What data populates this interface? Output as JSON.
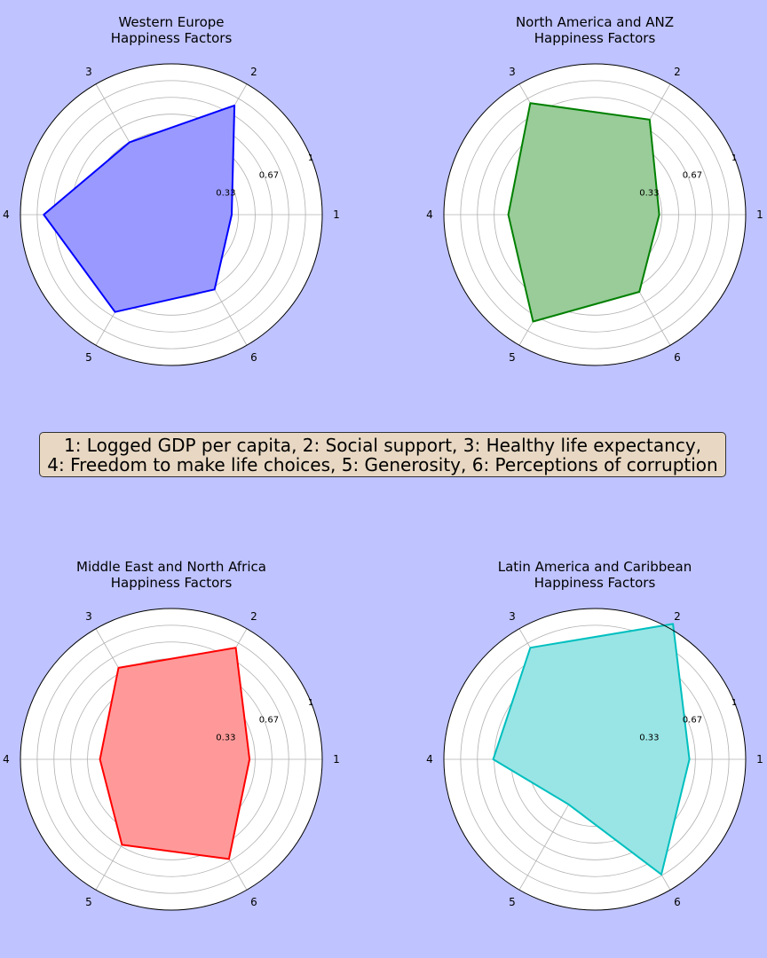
{
  "legend": {
    "line1": "1: Logged GDP per capita, 2: Social support, 3: Healthy life expectancy,",
    "line2": "4: Freedom to make life choices, 5: Generosity, 6: Perceptions of corruption"
  },
  "chart_data": [
    {
      "type": "radar",
      "title_line1": "Western Europe",
      "title_line2": "Happiness Factors",
      "axes": [
        "1",
        "2",
        "3",
        "4",
        "5",
        "6"
      ],
      "r_ticks": [
        "0.33",
        "0.67",
        "1"
      ],
      "rlim": [
        -0.1,
        1.0
      ],
      "values": [
        0.34,
        0.82,
        0.51,
        0.83,
        0.72,
        0.53
      ],
      "color": "#0000ff",
      "fill": "#9999ff"
    },
    {
      "type": "radar",
      "title_line1": "North America and ANZ",
      "title_line2": "Happiness Factors",
      "axes": [
        "1",
        "2",
        "3",
        "4",
        "5",
        "6"
      ],
      "r_ticks": [
        "0.33",
        "0.67",
        "1"
      ],
      "rlim": [
        -0.1,
        1.0
      ],
      "values": [
        0.37,
        0.7,
        0.84,
        0.53,
        0.8,
        0.55
      ],
      "color": "#008000",
      "fill": "#99cc99"
    },
    {
      "type": "radar",
      "title_line1": "Middle East and North Africa",
      "title_line2": "Happiness Factors",
      "axes": [
        "1",
        "2",
        "3",
        "4",
        "5",
        "6"
      ],
      "r_ticks": [
        "0.33",
        "0.67",
        "1"
      ],
      "rlim": [
        -0.1,
        1.0
      ],
      "values": [
        0.47,
        0.84,
        0.67,
        0.42,
        0.62,
        0.74
      ],
      "color": "#ff0000",
      "fill": "#ff9999"
    },
    {
      "type": "radar",
      "title_line1": "Latin America and Caribbean",
      "title_line2": "Happiness Factors",
      "axes": [
        "1",
        "2",
        "3",
        "4",
        "5",
        "6"
      ],
      "r_ticks": [
        "0.33",
        "0.67",
        "1"
      ],
      "rlim": [
        -0.1,
        1.0
      ],
      "values": [
        0.59,
        1.04,
        0.84,
        0.64,
        0.28,
        0.87
      ],
      "color": "#00bfbf",
      "fill": "#99e5e5"
    }
  ]
}
